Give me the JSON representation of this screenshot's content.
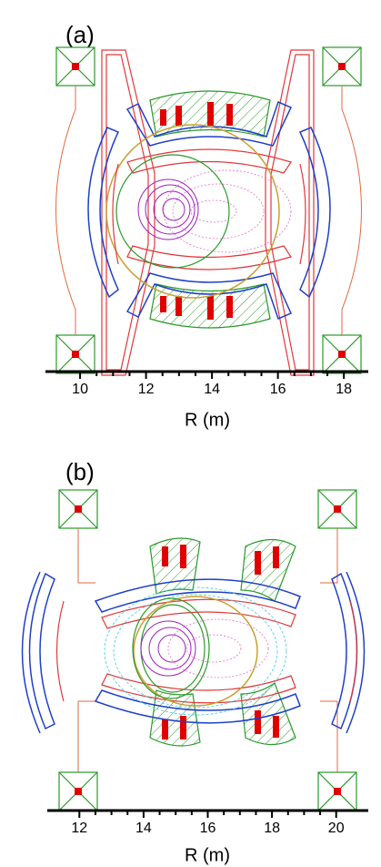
{
  "panels": [
    {
      "label": "(a)",
      "xticks": [
        10,
        12,
        14,
        16,
        18
      ],
      "xlim": [
        8.95,
        18.74
      ],
      "xlabel": "R (m)"
    },
    {
      "label": "(b)",
      "xticks": [
        12,
        14,
        16,
        18,
        20
      ],
      "xlim": [
        11.0,
        21.0
      ],
      "xlabel": "R (m)"
    }
  ]
}
